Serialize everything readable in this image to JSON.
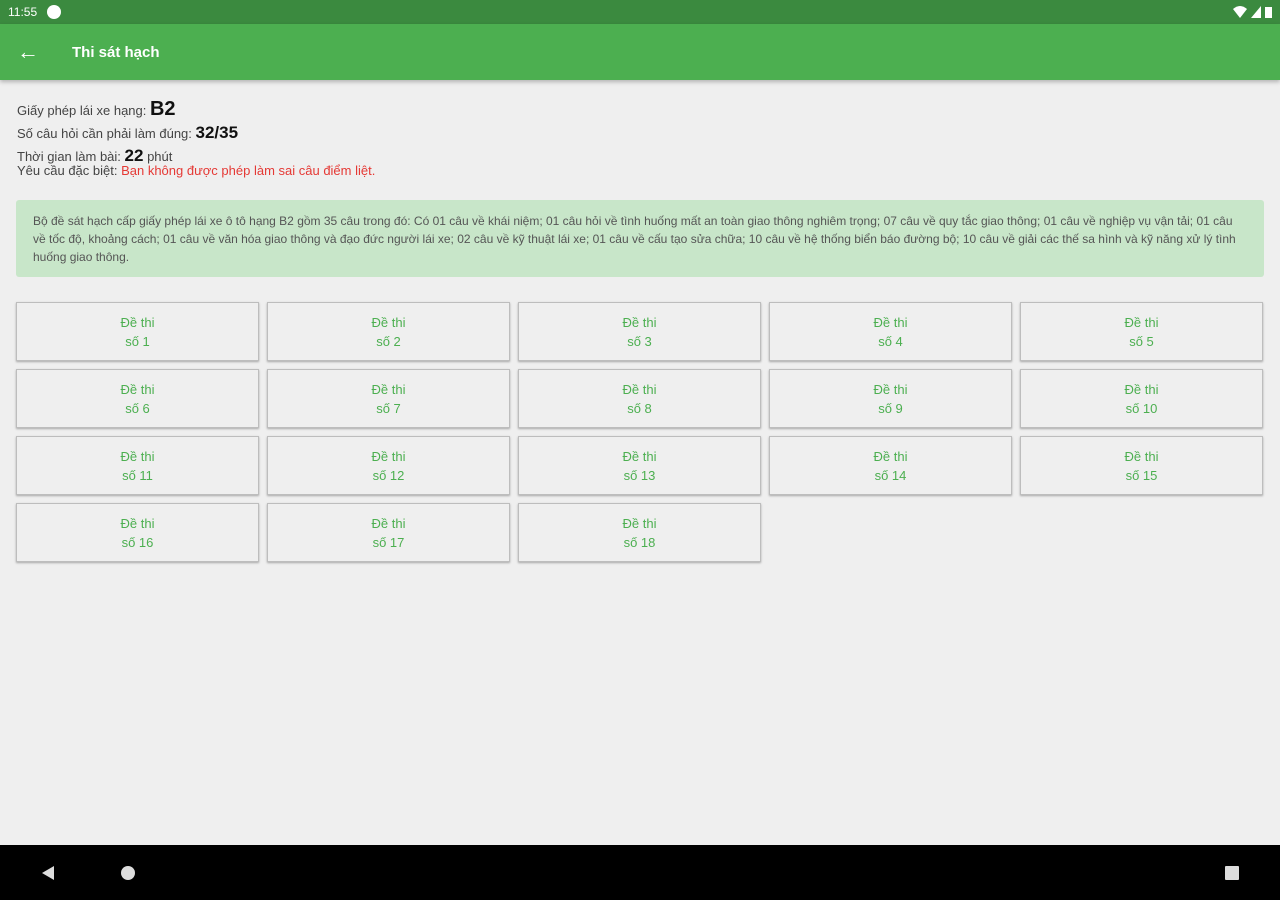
{
  "status": {
    "time": "11:55"
  },
  "appbar": {
    "title": "Thi sát hạch"
  },
  "info": {
    "license_label": "Giấy phép lái xe hạng: ",
    "license_value": "B2",
    "correct_label": "Số câu hỏi cần phải làm đúng: ",
    "correct_value": "32/35",
    "time_label": "Thời gian làm bài: ",
    "time_value": "22",
    "time_unit": " phút",
    "special_label": "Yêu cầu đặc biệt: ",
    "special_value": "Bạn không được phép làm sai câu điểm liệt."
  },
  "description": "Bộ đề sát hạch cấp giấy phép lái xe ô tô hạng B2 gồm 35 câu trong đó: Có 01 câu về khái niệm; 01 câu hỏi về tình huống mất an toàn giao thông nghiêm trọng; 07 câu về quy tắc giao thông; 01 câu về nghiệp vụ vận tải; 01 câu về tốc độ, khoảng cách; 01 câu về văn hóa giao thông và đạo đức người lái xe; 02 câu về kỹ thuật lái xe; 01 câu về cấu tạo sửa chữa; 10 câu về hệ thống biển báo đường bộ; 10 câu về giải các thế sa hình và kỹ năng xử lý tình huống giao thông.",
  "exams": [
    {
      "l1": "Đề thi",
      "l2": "số 1"
    },
    {
      "l1": "Đề thi",
      "l2": "số 2"
    },
    {
      "l1": "Đề thi",
      "l2": "số 3"
    },
    {
      "l1": "Đề thi",
      "l2": "số 4"
    },
    {
      "l1": "Đề thi",
      "l2": "số 5"
    },
    {
      "l1": "Đề thi",
      "l2": "số 6"
    },
    {
      "l1": "Đề thi",
      "l2": "số 7"
    },
    {
      "l1": "Đề thi",
      "l2": "số 8"
    },
    {
      "l1": "Đề thi",
      "l2": "số 9"
    },
    {
      "l1": "Đề thi",
      "l2": "số 10"
    },
    {
      "l1": "Đề thi",
      "l2": "số 11"
    },
    {
      "l1": "Đề thi",
      "l2": "số 12"
    },
    {
      "l1": "Đề thi",
      "l2": "số 13"
    },
    {
      "l1": "Đề thi",
      "l2": "số 14"
    },
    {
      "l1": "Đề thi",
      "l2": "số 15"
    },
    {
      "l1": "Đề thi",
      "l2": "số 16"
    },
    {
      "l1": "Đề thi",
      "l2": "số 17"
    },
    {
      "l1": "Đề thi",
      "l2": "số 18"
    }
  ],
  "colors": {
    "primary": "#4caf50",
    "status_bar": "#3b8a3f",
    "warning": "#e53935",
    "desc_bg": "#c8e6c9"
  }
}
